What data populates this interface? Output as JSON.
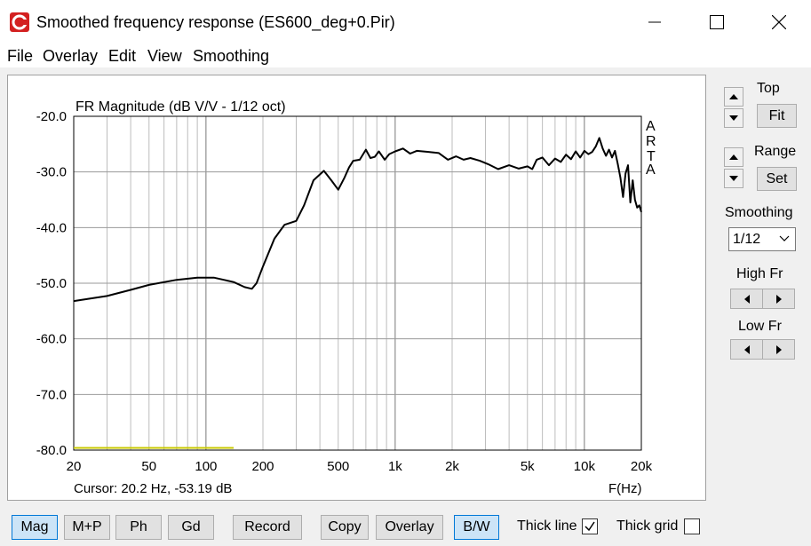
{
  "window": {
    "title": "Smoothed frequency response (ES600_deg+0.Pir)"
  },
  "menu": [
    "File",
    "Overlay",
    "Edit",
    "View",
    "Smoothing"
  ],
  "plot": {
    "title": "FR Magnitude (dB V/V - 1/12 oct)",
    "cursor_text": "Cursor: 20.2 Hz, -53.19 dB",
    "x_unit": "F(Hz)",
    "watermark": [
      "A",
      "R",
      "T",
      "A"
    ],
    "curve_color": "#000000",
    "marker_color": "#c8c800"
  },
  "chart_data": {
    "type": "line",
    "title": "FR Magnitude (dB V/V - 1/12 oct)",
    "xlabel": "F(Hz)",
    "ylabel": "",
    "x_scale": "log",
    "xlim": [
      20,
      20000
    ],
    "ylim": [
      -80,
      -20
    ],
    "grid": true,
    "x_ticks": [
      20,
      50,
      100,
      200,
      500,
      1000,
      2000,
      5000,
      10000,
      20000
    ],
    "x_tick_labels": [
      "20",
      "50",
      "100",
      "200",
      "500",
      "1k",
      "2k",
      "5k",
      "10k",
      "20k"
    ],
    "y_ticks": [
      -20,
      -30,
      -40,
      -50,
      -60,
      -70,
      -80
    ],
    "y_tick_labels": [
      "-20.0",
      "-30.0",
      "-40.0",
      "-50.0",
      "-60.0",
      "-70.0",
      "-80.0"
    ],
    "series": [
      {
        "x": [
          20,
          30,
          40,
          50,
          70,
          90,
          110,
          140,
          160,
          175,
          185,
          200,
          230,
          260,
          300,
          330,
          370,
          420,
          460,
          500,
          540,
          570,
          600,
          650,
          700,
          740,
          780,
          820,
          880,
          930,
          1000,
          1100,
          1200,
          1300,
          1500,
          1700,
          1900,
          2100,
          2300,
          2500,
          2800,
          3100,
          3500,
          4000,
          4500,
          5000,
          5300,
          5600,
          6000,
          6500,
          7000,
          7500,
          8000,
          8500,
          9000,
          9500,
          10000,
          10500,
          11000,
          11500,
          12000,
          12500,
          13000,
          13500,
          14000,
          14500,
          15000,
          15500,
          16000,
          16500,
          17000,
          17500,
          18000,
          18500,
          19000,
          19500,
          20000
        ],
        "y": [
          -53.2,
          -52.3,
          -51.2,
          -50.3,
          -49.4,
          -49.0,
          -49.0,
          -49.8,
          -50.7,
          -51.0,
          -50.0,
          -47.0,
          -42.0,
          -39.5,
          -38.8,
          -36.0,
          -31.5,
          -29.8,
          -31.5,
          -33.2,
          -31.0,
          -29.2,
          -28.0,
          -27.8,
          -26.0,
          -27.5,
          -27.3,
          -26.3,
          -27.8,
          -26.8,
          -26.3,
          -25.8,
          -26.7,
          -26.2,
          -26.4,
          -26.6,
          -27.8,
          -27.2,
          -27.8,
          -27.5,
          -28.0,
          -28.6,
          -29.5,
          -28.8,
          -29.4,
          -29.0,
          -29.5,
          -27.8,
          -27.4,
          -28.8,
          -27.6,
          -28.2,
          -26.9,
          -27.7,
          -26.3,
          -27.4,
          -26.2,
          -26.8,
          -26.4,
          -25.4,
          -23.9,
          -25.8,
          -27.1,
          -26.0,
          -27.4,
          -26.2,
          -28.5,
          -31.0,
          -34.5,
          -30.3,
          -28.8,
          -35.5,
          -31.5,
          -35.0,
          -36.4,
          -36.0,
          -37.2
        ]
      }
    ],
    "marker_line": {
      "x": [
        20,
        140
      ],
      "y": [
        -79.6,
        -79.6
      ]
    }
  },
  "sidebar": {
    "top_label": "Top",
    "fit_button": "Fit",
    "range_label": "Range",
    "set_button": "Set",
    "smoothing_label": "Smoothing",
    "smoothing_value": "1/12",
    "high_fr_label": "High Fr",
    "low_fr_label": "Low Fr"
  },
  "toolbar": {
    "mag": "Mag",
    "mp": "M+P",
    "ph": "Ph",
    "gd": "Gd",
    "record": "Record",
    "copy": "Copy",
    "overlay": "Overlay",
    "bw": "B/W",
    "thick_line_label": "Thick line",
    "thick_line_checked": true,
    "thick_grid_label": "Thick grid",
    "thick_grid_checked": false
  }
}
